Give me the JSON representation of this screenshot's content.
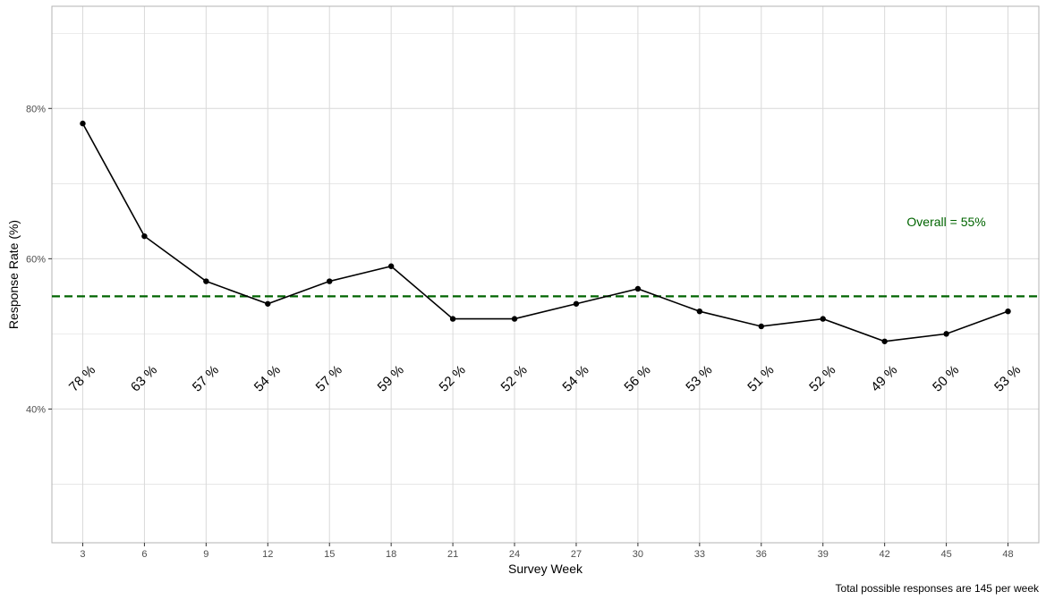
{
  "chart_data": {
    "type": "line",
    "xlabel": "Survey Week",
    "ylabel": "Response Rate (%)",
    "x": [
      3,
      6,
      9,
      12,
      15,
      18,
      21,
      24,
      27,
      30,
      33,
      36,
      39,
      42,
      45,
      48
    ],
    "x_ticks": [
      "3",
      "6",
      "9",
      "12",
      "15",
      "18",
      "21",
      "24",
      "27",
      "30",
      "33",
      "36",
      "39",
      "42",
      "45",
      "48"
    ],
    "series": [
      {
        "values": [
          78,
          63,
          57,
          54,
          57,
          59,
          52,
          52,
          54,
          56,
          53,
          51,
          52,
          49,
          50,
          53
        ]
      }
    ],
    "data_labels": [
      "78 %",
      "63 %",
      "57 %",
      "54 %",
      "57 %",
      "59 %",
      "52 %",
      "52 %",
      "54 %",
      "56 %",
      "53 %",
      "51 %",
      "52 %",
      "49 %",
      "50 %",
      "53 %"
    ],
    "data_label_y": 44,
    "y_ticks": [
      40,
      60,
      80
    ],
    "y_tick_labels": [
      "40%",
      "60%",
      "80%"
    ],
    "ylim": [
      22.2,
      93.6
    ],
    "xlim": [
      1.5,
      49.5
    ],
    "grid": true,
    "reference_line": {
      "value": 55,
      "color": "#006400",
      "style": "dashed"
    },
    "annotation": {
      "text": "Overall = 55%",
      "x": 45,
      "y": 64.9,
      "color": "#006400"
    },
    "caption": "Total possible responses are 145 per week",
    "colors": {
      "line": "#000000",
      "grid": "#d9d9d9",
      "panel_border": "#b3b3b3",
      "reference": "#006400"
    }
  }
}
